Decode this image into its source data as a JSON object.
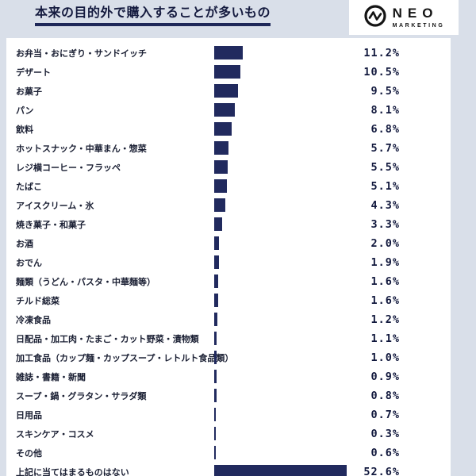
{
  "page": {
    "title": "本来の目的外で購入することが多いもの"
  },
  "logo": {
    "name": "NEO",
    "sub": "MARKETING"
  },
  "chart_data": {
    "type": "bar",
    "orientation": "horizontal",
    "title": "本来の目的外で購入することが多いもの",
    "value_unit": "%",
    "bar_color": "#212a5e",
    "xlim": [
      0,
      60
    ],
    "grid": false,
    "legend": "none",
    "categories": [
      "お弁当・おにぎり・サンドイッチ",
      "デザート",
      "お菓子",
      "パン",
      "飲料",
      "ホットスナック・中華まん・惣菜",
      "レジ横コーヒー・フラッペ",
      "たばこ",
      "アイスクリーム・氷",
      "焼き菓子・和菓子",
      "お酒",
      "おでん",
      "麺類（うどん・パスタ・中華麺等）",
      "チルド総菜",
      "冷凍食品",
      "日配品・加工肉・たまご・カット野菜・漬物類",
      "加工食品（カップ麺・カップスープ・レトルト食品類）",
      "雑誌・書籍・新聞",
      "スープ・鍋・グラタン・サラダ類",
      "日用品",
      "スキンケア・コスメ",
      "その他",
      "上記に当てはまるものはない"
    ],
    "values": [
      11.2,
      10.5,
      9.5,
      8.1,
      6.8,
      5.7,
      5.5,
      5.1,
      4.3,
      3.3,
      2.0,
      1.9,
      1.6,
      1.6,
      1.2,
      1.1,
      1.0,
      0.9,
      0.8,
      0.7,
      0.3,
      0.6,
      52.6
    ]
  }
}
